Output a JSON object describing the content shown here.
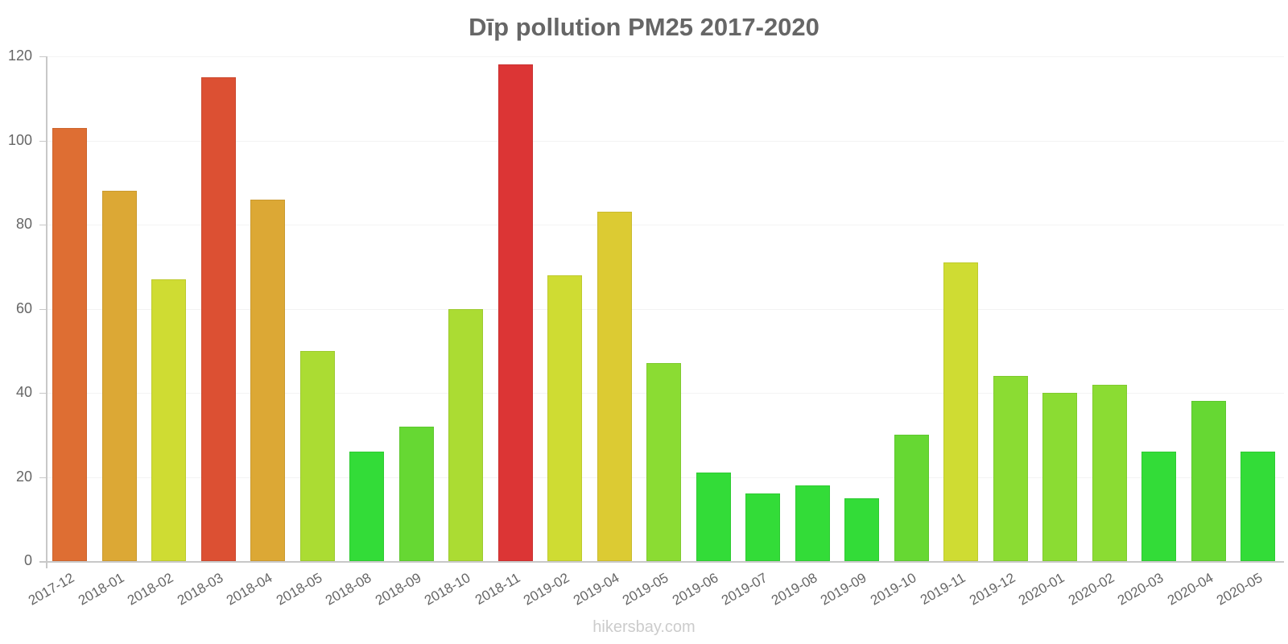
{
  "chart_data": {
    "type": "bar",
    "title": "Dīp pollution PM25 2017-2020",
    "xlabel": "",
    "ylabel": "",
    "ylim": [
      0,
      120
    ],
    "yticks": [
      0,
      20,
      40,
      60,
      80,
      100,
      120
    ],
    "grid": true,
    "legend": null,
    "categories": [
      "2017-12",
      "2018-01",
      "2018-02",
      "2018-03",
      "2018-04",
      "2018-05",
      "2018-08",
      "2018-09",
      "2018-10",
      "2018-11",
      "2019-02",
      "2019-04",
      "2019-05",
      "2019-06",
      "2019-07",
      "2019-08",
      "2019-09",
      "2019-10",
      "2019-11",
      "2019-12",
      "2020-01",
      "2020-02",
      "2020-03",
      "2020-04",
      "2020-05"
    ],
    "values": [
      103,
      88,
      67,
      115,
      86,
      50,
      26,
      32,
      60,
      118,
      68,
      83,
      47,
      21,
      16,
      18,
      15,
      30,
      71,
      44,
      40,
      42,
      26,
      38,
      26
    ],
    "colors": [
      "#de6e33",
      "#dca835",
      "#cfdc33",
      "#dc5033",
      "#dca835",
      "#abdc33",
      "#33dc38",
      "#66d833",
      "#abdc33",
      "#dc3535",
      "#cfdc33",
      "#dccb33",
      "#8bdc33",
      "#33dc38",
      "#33dc38",
      "#33dc38",
      "#33dc38",
      "#66d833",
      "#cfdc33",
      "#8bdc33",
      "#8bdc33",
      "#8bdc33",
      "#33dc38",
      "#66d833",
      "#33dc38"
    ]
  },
  "footer": "hikersbay.com"
}
